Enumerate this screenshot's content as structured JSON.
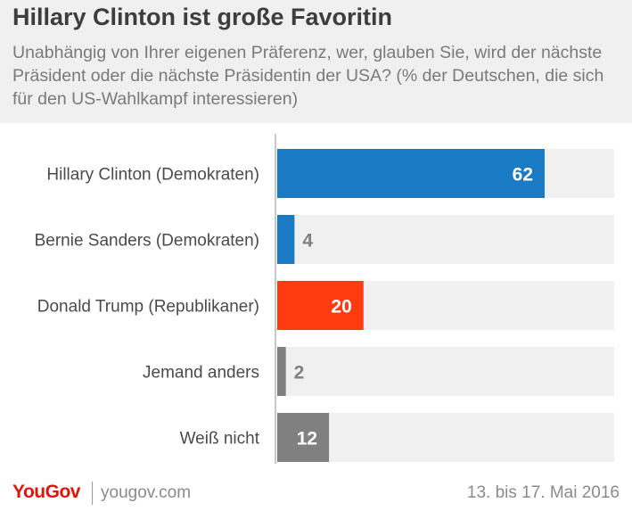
{
  "header": {
    "title": "Hillary Clinton ist große Favoritin",
    "subtitle": "Unabhängig von Ihrer eigenen Präferenz, wer, glauben Sie, wird der nächste Präsident oder die nächste Präsidentin der USA? (% der Deutschen, die sich für den US-Wahlkampf interessieren)"
  },
  "chart_data": {
    "type": "bar",
    "orientation": "horizontal",
    "categories": [
      "Hillary Clinton (Demokraten)",
      "Bernie Sanders (Demokraten)",
      "Donald Trump (Republikaner)",
      "Jemand anders",
      "Weiß nicht"
    ],
    "values": [
      62,
      4,
      20,
      2,
      12
    ],
    "bar_colors": [
      "#1a7bc4",
      "#1a7bc4",
      "#ff3b0f",
      "#808080",
      "#808080"
    ],
    "track_color": "#f0f0f0",
    "label_colors": [
      "#ffffff",
      "#808080",
      "#ffffff",
      "#808080",
      "#ffffff"
    ],
    "xlim": [
      0,
      100
    ],
    "grid": false
  },
  "footer": {
    "brand": "YouGov",
    "url": "yougov.com",
    "date": "13. bis 17. Mai 2016"
  }
}
